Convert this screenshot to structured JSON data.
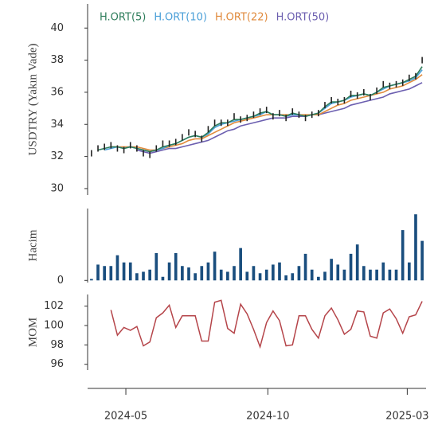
{
  "chart_data": [
    {
      "type": "line",
      "ylabel": "USDTRY (Yakın Vade)",
      "x": [
        1,
        2,
        3,
        4,
        5,
        6,
        7,
        8,
        9,
        10,
        11,
        12,
        13,
        14,
        15,
        16,
        17,
        18,
        19,
        20,
        21,
        22,
        23,
        24,
        25,
        26,
        27,
        28,
        29,
        30,
        31,
        32,
        33,
        34,
        35,
        36,
        37,
        38,
        39,
        40,
        41,
        42,
        43,
        44,
        45,
        46,
        47,
        48,
        49,
        50,
        51,
        52
      ],
      "xlim": [
        0.4,
        52.6
      ],
      "ylim": [
        29.6,
        41.5
      ],
      "yticks": [
        30,
        32,
        34,
        36,
        38,
        40
      ],
      "color": "#222222",
      "values": [
        32.2,
        32.5,
        32.6,
        32.7,
        32.5,
        32.4,
        32.7,
        32.5,
        32.2,
        32.1,
        32.5,
        32.8,
        32.8,
        32.9,
        33.2,
        33.5,
        33.4,
        33.1,
        33.7,
        34.1,
        34.1,
        34.1,
        34.5,
        34.3,
        34.4,
        34.6,
        34.8,
        34.9,
        34.5,
        34.7,
        34.4,
        34.8,
        34.6,
        34.4,
        34.6,
        34.7,
        35.2,
        35.5,
        35.4,
        35.5,
        35.9,
        35.8,
        36.0,
        35.7,
        36.1,
        36.5,
        36.4,
        36.5,
        36.6,
        36.9,
        37.0,
        38.0
      ],
      "series": [
        {
          "name": "H.ORT(5)",
          "color": "#2e7d5b",
          "values": [
            null,
            32.4,
            32.5,
            32.6,
            32.6,
            32.5,
            32.6,
            32.5,
            32.4,
            32.3,
            32.4,
            32.6,
            32.7,
            32.8,
            33.0,
            33.2,
            33.3,
            33.2,
            33.5,
            33.9,
            34.1,
            34.1,
            34.3,
            34.3,
            34.4,
            34.5,
            34.7,
            34.8,
            34.6,
            34.6,
            34.5,
            34.7,
            34.6,
            34.5,
            34.6,
            34.7,
            35.1,
            35.4,
            35.4,
            35.5,
            35.8,
            35.8,
            35.9,
            35.8,
            36.0,
            36.3,
            36.4,
            36.5,
            36.6,
            36.8,
            37.0,
            37.6
          ]
        },
        {
          "name": "H.ORT(10)",
          "color": "#4a9fd8",
          "values": [
            null,
            null,
            32.4,
            32.5,
            32.6,
            32.5,
            32.6,
            32.5,
            32.4,
            32.3,
            32.4,
            32.5,
            32.7,
            32.8,
            33.0,
            33.2,
            33.3,
            33.2,
            33.4,
            33.8,
            34.0,
            34.1,
            34.2,
            34.3,
            34.4,
            34.5,
            34.6,
            34.8,
            34.6,
            34.6,
            34.5,
            34.6,
            34.6,
            34.5,
            34.6,
            34.7,
            35.0,
            35.3,
            35.4,
            35.5,
            35.7,
            35.8,
            35.9,
            35.8,
            36.0,
            36.2,
            36.4,
            36.5,
            36.6,
            36.7,
            36.9,
            37.4
          ]
        },
        {
          "name": "H.ORT(22)",
          "color": "#e08a3c",
          "values": [
            null,
            null,
            null,
            32.6,
            32.6,
            32.6,
            32.6,
            32.6,
            32.5,
            32.4,
            32.4,
            32.5,
            32.6,
            32.7,
            32.8,
            33.0,
            33.1,
            33.1,
            33.3,
            33.5,
            33.7,
            33.9,
            34.1,
            34.2,
            34.3,
            34.4,
            34.5,
            34.6,
            34.6,
            34.6,
            34.6,
            34.6,
            34.6,
            34.6,
            34.6,
            34.6,
            34.8,
            35.0,
            35.2,
            35.3,
            35.5,
            35.6,
            35.7,
            35.8,
            35.9,
            36.0,
            36.2,
            36.3,
            36.4,
            36.6,
            36.8,
            37.1
          ]
        },
        {
          "name": "H.ORT(50)",
          "color": "#6c5fb0",
          "values": [
            null,
            null,
            null,
            null,
            null,
            null,
            null,
            32.4,
            32.3,
            32.2,
            32.3,
            32.4,
            32.5,
            32.5,
            32.6,
            32.7,
            32.8,
            32.9,
            33.0,
            33.2,
            33.4,
            33.6,
            33.7,
            33.9,
            34.0,
            34.1,
            34.2,
            34.3,
            34.4,
            34.4,
            34.4,
            34.5,
            34.5,
            34.5,
            34.6,
            34.6,
            34.7,
            34.8,
            34.9,
            35.0,
            35.2,
            35.3,
            35.4,
            35.5,
            35.6,
            35.7,
            35.9,
            36.0,
            36.1,
            36.2,
            36.4,
            36.6
          ]
        }
      ]
    },
    {
      "type": "bar",
      "ylabel": "Hacim",
      "x": [
        1,
        2,
        3,
        4,
        5,
        6,
        7,
        8,
        9,
        10,
        11,
        12,
        13,
        14,
        15,
        16,
        17,
        18,
        19,
        20,
        21,
        22,
        23,
        24,
        25,
        26,
        27,
        28,
        29,
        30,
        31,
        32,
        33,
        34,
        35,
        36,
        37,
        38,
        39,
        40,
        41,
        42,
        43,
        44,
        45,
        46,
        47,
        48,
        49,
        50,
        51,
        52
      ],
      "xlim": [
        0.4,
        52.6
      ],
      "ylim": [
        -3,
        100
      ],
      "yticks": [
        0
      ],
      "color": "#1a4e7e",
      "values": [
        2,
        22,
        20,
        20,
        35,
        25,
        25,
        10,
        12,
        15,
        38,
        5,
        25,
        38,
        20,
        18,
        10,
        20,
        25,
        40,
        15,
        12,
        20,
        45,
        12,
        20,
        10,
        15,
        22,
        25,
        7,
        10,
        20,
        37,
        15,
        5,
        12,
        30,
        22,
        15,
        37,
        50,
        20,
        15,
        15,
        25,
        15,
        15,
        70,
        25,
        92,
        55
      ]
    },
    {
      "type": "line",
      "ylabel": "MOM",
      "x": [
        1,
        2,
        3,
        4,
        5,
        6,
        7,
        8,
        9,
        10,
        11,
        12,
        13,
        14,
        15,
        16,
        17,
        18,
        19,
        20,
        21,
        22,
        23,
        24,
        25,
        26,
        27,
        28,
        29,
        30,
        31,
        32,
        33,
        34,
        35,
        36,
        37,
        38,
        39,
        40,
        41,
        42,
        43,
        44,
        45,
        46,
        47,
        48,
        49,
        50,
        51,
        52
      ],
      "xlim": [
        0.4,
        52.6
      ],
      "ylim": [
        95.4,
        103.2
      ],
      "yticks": [
        96,
        98,
        100,
        102
      ],
      "color": "#b5454a",
      "xticks": [
        {
          "value": 6.3,
          "label": "2024-05"
        },
        {
          "value": 28.2,
          "label": "2024-10"
        },
        {
          "value": 49.7,
          "label": "2025-03"
        }
      ],
      "values": [
        null,
        null,
        null,
        101.6,
        99.0,
        99.8,
        99.5,
        99.9,
        97.9,
        98.3,
        100.8,
        101.3,
        102.1,
        99.8,
        101.0,
        101.0,
        101.0,
        98.4,
        98.4,
        102.4,
        102.6,
        99.7,
        99.2,
        102.2,
        101.2,
        99.6,
        97.8,
        100.3,
        101.5,
        100.5,
        97.9,
        98.0,
        101.0,
        101.0,
        99.6,
        98.7,
        101.0,
        101.8,
        100.6,
        99.1,
        99.6,
        101.5,
        101.4,
        98.9,
        98.7,
        101.3,
        101.7,
        100.7,
        99.2,
        100.9,
        101.1,
        102.5
      ]
    }
  ]
}
